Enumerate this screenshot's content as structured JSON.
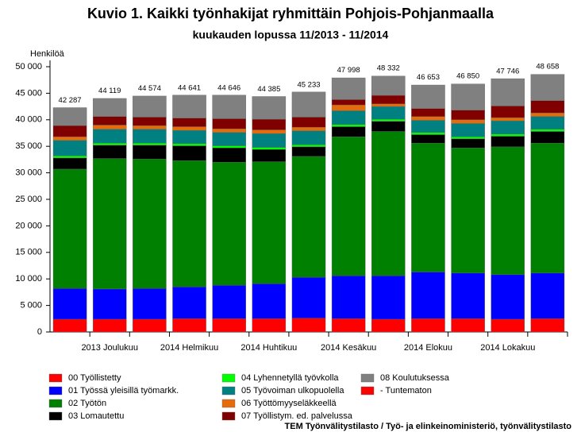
{
  "chart_data": {
    "type": "stacked-bar",
    "title": "Kuvio 1. Kaikki työnhakijat ryhmittäin Pohjois-Pohjanmaalla",
    "subtitle": "kuukauden lopussa 11/2013 - 11/2014",
    "y_label": "Henkilöä",
    "source": "TEM Työnvälitystilasto / Työ- ja elinkeinoministeriö, työnvälitystilasto",
    "categories": [
      null,
      "2013 Joulukuu",
      null,
      "2014 Helmikuu",
      null,
      "2014 Huhtikuu",
      null,
      "2014 Kesäkuu",
      null,
      "2014 Elokuu",
      null,
      "2014 Lokakuu",
      null
    ],
    "ylim": [
      0,
      50000
    ],
    "yticks": [
      0,
      {
        "value": 5000,
        "label": "5 000"
      },
      {
        "value": 10000,
        "label": "10 000"
      },
      {
        "value": 15000,
        "label": "15 000"
      },
      {
        "value": 20000,
        "label": "20 000"
      },
      {
        "value": 25000,
        "label": "25 000"
      },
      {
        "value": 30000,
        "label": "30 000"
      },
      {
        "value": 35000,
        "label": "35 000"
      },
      {
        "value": 40000,
        "label": "40 000"
      },
      {
        "value": 45000,
        "label": "45 000"
      },
      {
        "value": 50000,
        "label": "50 000"
      }
    ],
    "totals": [
      42287,
      44119,
      44574,
      44641,
      44646,
      44385,
      45233,
      47998,
      48332,
      46653,
      46850,
      47746,
      48658
    ],
    "total_labels": [
      "42 287",
      "44 119",
      "44 574",
      "44 641",
      "44 646",
      "44 385",
      "45 233",
      "47 998",
      "48 332",
      "46 653",
      "46 850",
      "47 746",
      "48 658"
    ],
    "series": [
      {
        "name": "00 Työllistetty",
        "color": "#ff0000",
        "values": [
          2400,
          2400,
          2400,
          2500,
          2500,
          2500,
          2600,
          2500,
          2400,
          2500,
          2500,
          2400,
          2500
        ]
      },
      {
        "name": "01 Työssä yleisillä työmarkk.",
        "color": "#0000ff",
        "values": [
          5800,
          5700,
          5800,
          6000,
          6300,
          6600,
          7700,
          8100,
          8200,
          8800,
          8600,
          8400,
          8600
        ]
      },
      {
        "name": "02 Työtön",
        "color": "#008000",
        "values": [
          22500,
          24600,
          24400,
          23800,
          23200,
          23000,
          22800,
          26200,
          27200,
          24300,
          23600,
          24100,
          24500
        ]
      },
      {
        "name": "03 Lomautettu",
        "color": "#000000",
        "values": [
          2100,
          2500,
          2600,
          2800,
          2700,
          2300,
          1800,
          1900,
          1900,
          1600,
          1700,
          2000,
          2200
        ]
      },
      {
        "name": "04 Lyhennetyllä työvkolla",
        "color": "#00ff00",
        "values": [
          400,
          400,
          400,
          400,
          400,
          400,
          400,
          400,
          400,
          400,
          400,
          400,
          400
        ]
      },
      {
        "name": "05 Työvoiman ulkopuolella",
        "color": "#008080",
        "values": [
          2900,
          2600,
          2600,
          2500,
          2500,
          2600,
          2600,
          2600,
          2400,
          2300,
          2500,
          2500,
          2400
        ]
      },
      {
        "name": "06 Työttömyyseläkkeellä",
        "color": "#e46c0a",
        "values": [
          700,
          800,
          700,
          700,
          700,
          700,
          700,
          1100,
          500,
          700,
          700,
          600,
          700
        ]
      },
      {
        "name": "07 Työllistym. ed. palvelussa",
        "color": "#800000",
        "values": [
          2100,
          1600,
          1600,
          1600,
          1900,
          2000,
          1900,
          1000,
          1600,
          1500,
          1800,
          2200,
          2300
        ]
      },
      {
        "name": "08 Koulutuksessa",
        "color": "#808080",
        "values": [
          3387,
          3419,
          3974,
          4341,
          4446,
          4285,
          4733,
          4098,
          3632,
          4453,
          4950,
          5146,
          4958
        ]
      },
      {
        "name": "- Tuntematon",
        "color": "#ff0000",
        "values": [
          0,
          0,
          0,
          0,
          0,
          0,
          0,
          0,
          0,
          0,
          0,
          0,
          0
        ]
      }
    ]
  }
}
